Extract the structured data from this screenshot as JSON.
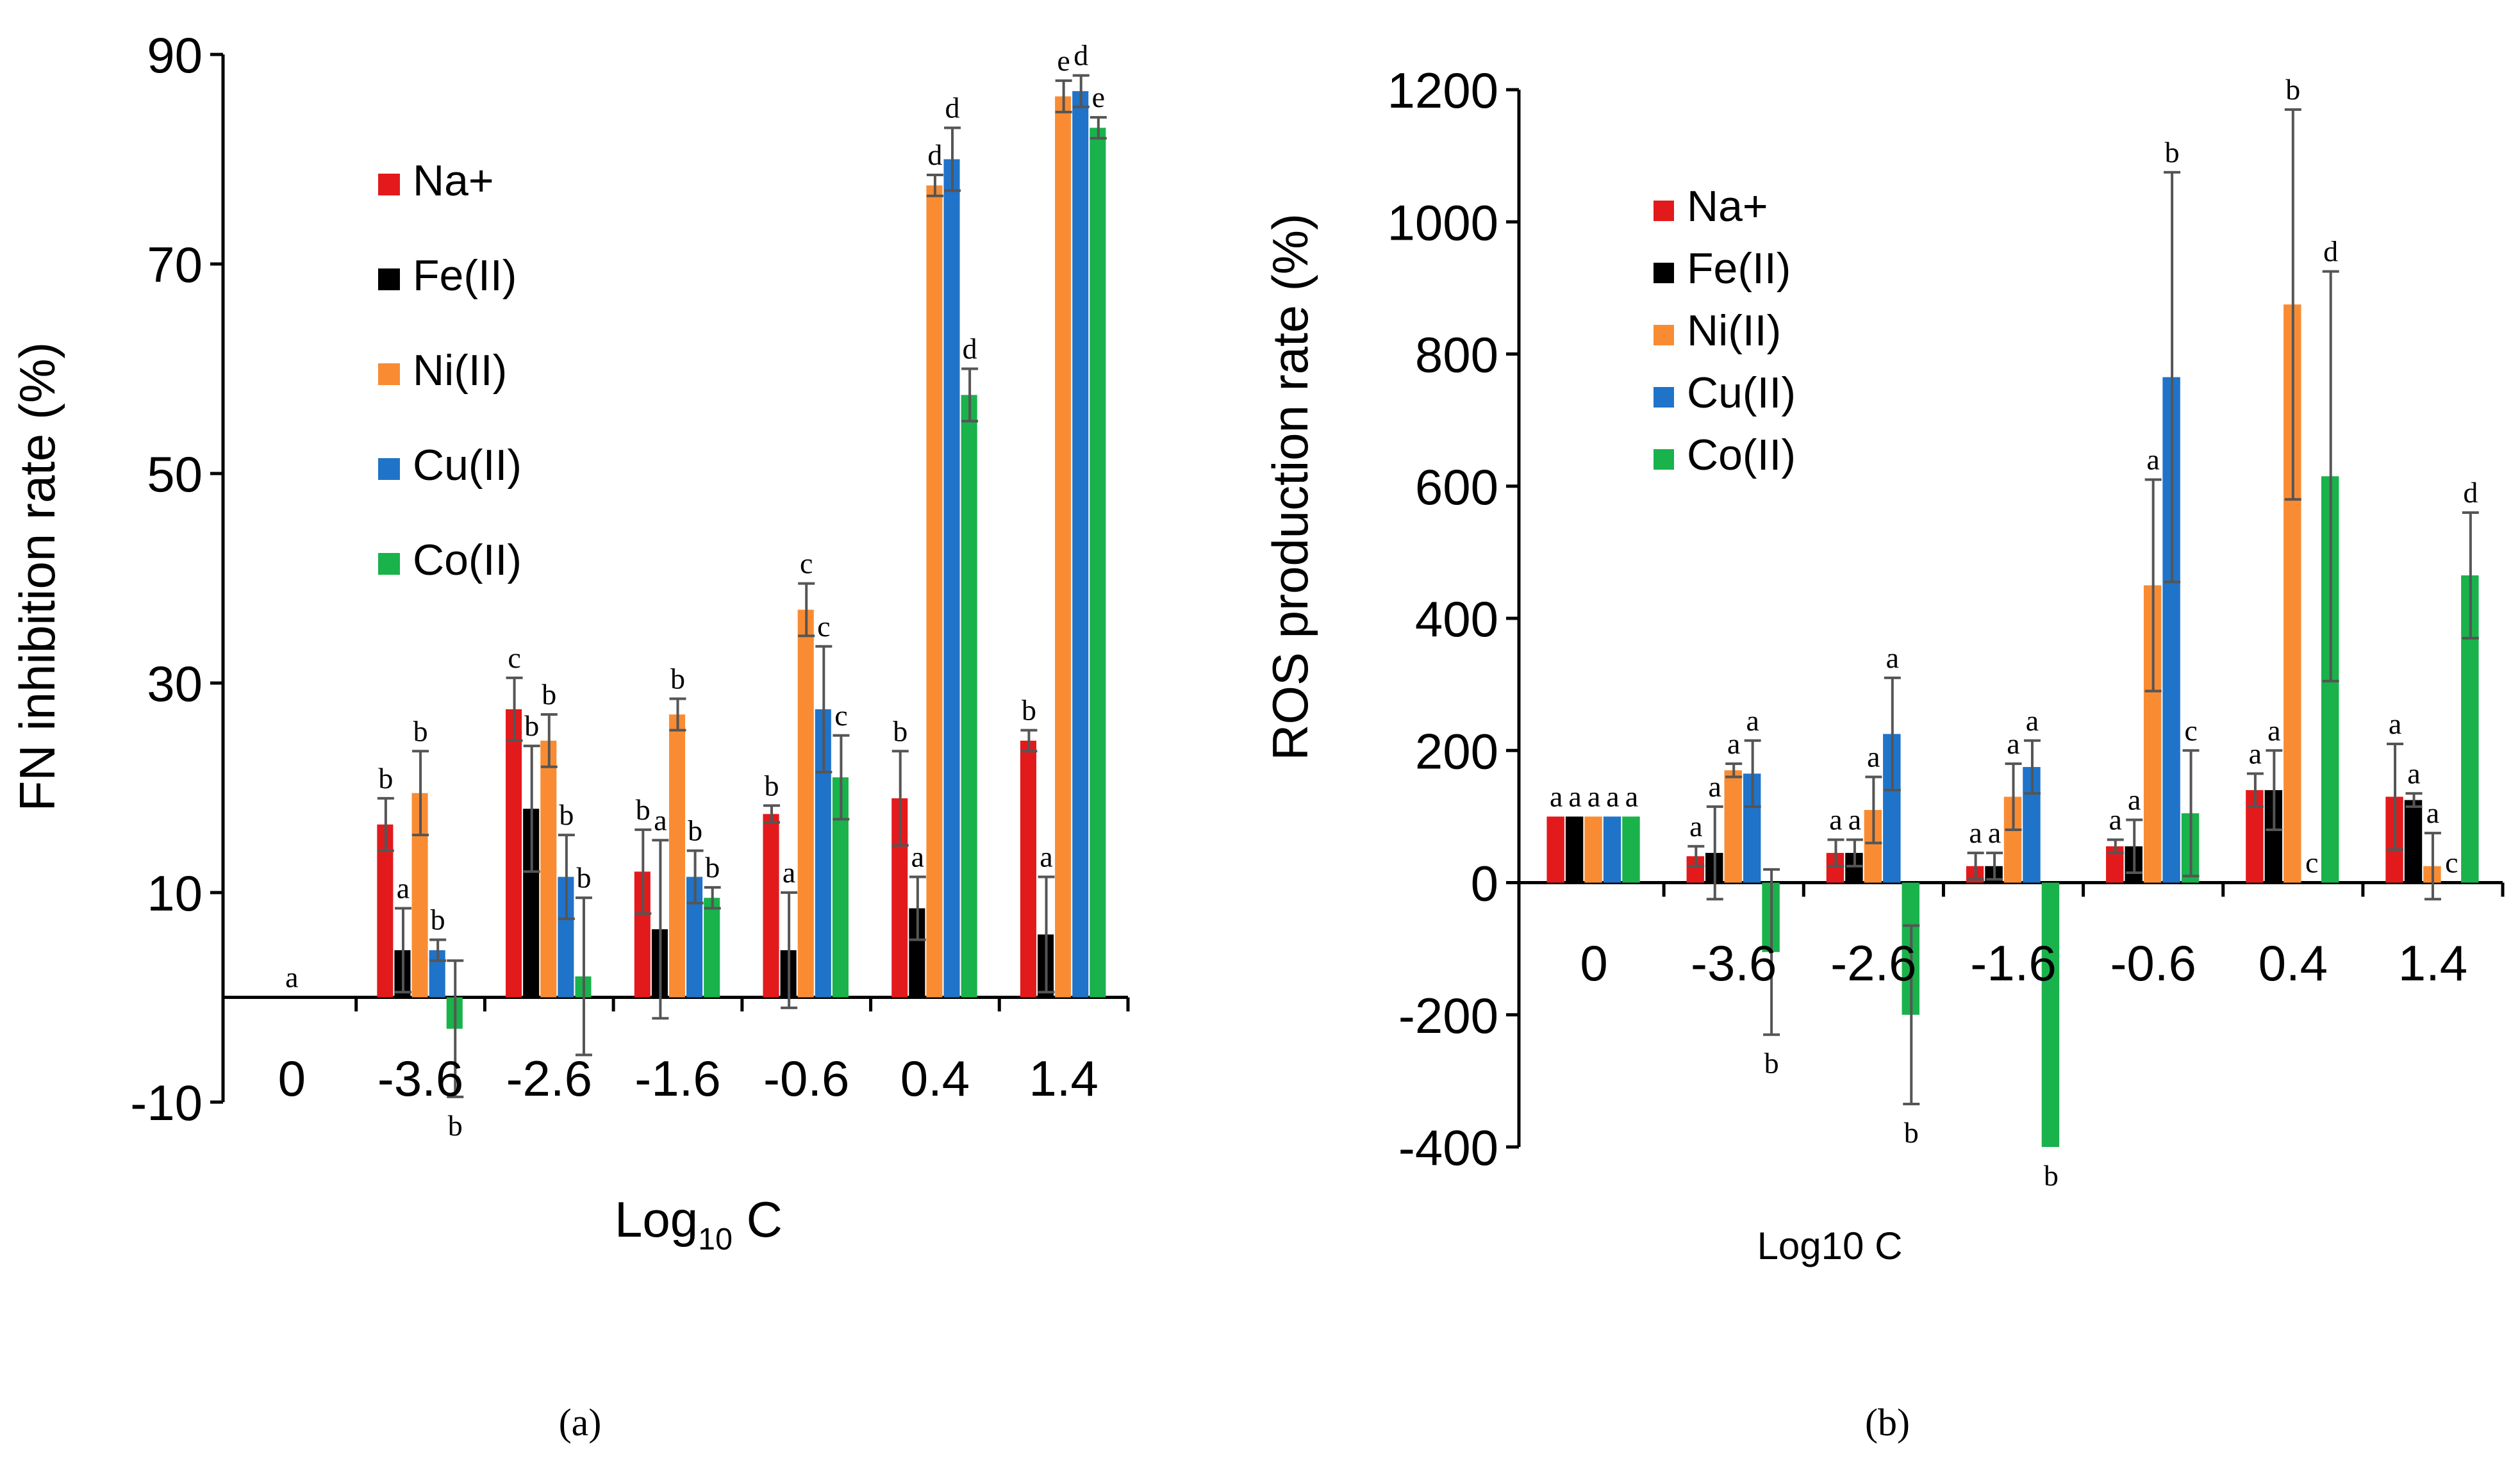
{
  "colors": {
    "Na+": "#e31a1c",
    "Fe(II)": "#000000",
    "Ni(II)": "#f98c33",
    "Cu(II)": "#1f73c9",
    "Co(II)": "#19b24b"
  },
  "captions": {
    "a": "(a)",
    "b": "(b)"
  },
  "chart_data": [
    {
      "type": "bar",
      "panel": "a",
      "ylabel": "FN inhibition rate (%)",
      "xlabel_main": "Log",
      "xlabel_sub": "10",
      "xlabel_tail": " C",
      "ylim": [
        -10,
        90
      ],
      "yticks": [
        -10,
        10,
        30,
        50,
        70,
        90
      ],
      "categories": [
        "0",
        "-3.6",
        "-2.6",
        "-1.6",
        "-0.6",
        "0.4",
        "1.4"
      ],
      "legend_position": "upper-left",
      "grid": false,
      "series": [
        {
          "name": "Na+",
          "values": [
            0,
            16.5,
            27.5,
            12,
            17.5,
            19,
            24.5
          ],
          "errors": [
            0,
            2.5,
            3,
            4,
            0.8,
            4.5,
            1
          ],
          "labels": [
            "",
            "b",
            "c",
            "b",
            "b",
            "b",
            "b"
          ]
        },
        {
          "name": "Fe(II)",
          "values": [
            0,
            4.5,
            18,
            6.5,
            4.5,
            8.5,
            6
          ],
          "errors": [
            0,
            4,
            6,
            8.5,
            5.5,
            3,
            5.5
          ],
          "labels": [
            "",
            "a",
            "b",
            "a",
            "a",
            "a",
            "a"
          ]
        },
        {
          "name": "Ni(II)",
          "values": [
            0,
            19.5,
            24.5,
            27,
            37,
            77.5,
            86
          ],
          "errors": [
            0,
            4,
            2.5,
            1.5,
            2.5,
            1,
            1.5
          ],
          "labels": [
            "a",
            "b",
            "b",
            "b",
            "c",
            "d",
            "e"
          ]
        },
        {
          "name": "Cu(II)",
          "values": [
            0,
            4.5,
            11.5,
            11.5,
            27.5,
            80,
            86.5
          ],
          "errors": [
            0,
            1,
            4,
            2.5,
            6,
            3,
            1.5
          ],
          "labels": [
            "",
            "b",
            "b",
            "b",
            "c",
            "d",
            "d"
          ]
        },
        {
          "name": "Co(II)",
          "values": [
            0,
            -3,
            2,
            9.5,
            21,
            57.5,
            83
          ],
          "errors": [
            0,
            6.5,
            7.5,
            1,
            4,
            2.5,
            1
          ],
          "labels": [
            "",
            "b",
            "b",
            "b",
            "c",
            "d",
            "e"
          ]
        }
      ]
    },
    {
      "type": "bar",
      "panel": "b",
      "ylabel": "ROS production rate (%)",
      "xlabel": "Log10 C",
      "ylim": [
        -400,
        1200
      ],
      "yticks": [
        -400,
        -200,
        0,
        200,
        400,
        600,
        800,
        1000,
        1200
      ],
      "categories": [
        "0",
        "-3.6",
        "-2.6",
        "-1.6",
        "-0.6",
        "0.4",
        "1.4"
      ],
      "legend_position": "upper-left",
      "grid": false,
      "series": [
        {
          "name": "Na+",
          "values": [
            100,
            40,
            45,
            25,
            55,
            140,
            130
          ],
          "errors": [
            0,
            15,
            20,
            20,
            10,
            25,
            80
          ],
          "labels": [
            "a",
            "a",
            "a",
            "a",
            "a",
            "a",
            "a"
          ]
        },
        {
          "name": "Fe(II)",
          "values": [
            100,
            45,
            45,
            25,
            55,
            140,
            125
          ],
          "errors": [
            0,
            70,
            20,
            20,
            40,
            60,
            10
          ],
          "labels": [
            "a",
            "a",
            "a",
            "a",
            "a",
            "a",
            "a"
          ]
        },
        {
          "name": "Ni(II)",
          "values": [
            100,
            170,
            110,
            130,
            450,
            875,
            25
          ],
          "errors": [
            0,
            10,
            50,
            50,
            160,
            295,
            50
          ],
          "labels": [
            "a",
            "a",
            "a",
            "a",
            "a",
            "b",
            "a"
          ]
        },
        {
          "name": "Cu(II)",
          "values": [
            100,
            165,
            225,
            175,
            765,
            0,
            0
          ],
          "errors": [
            0,
            50,
            85,
            40,
            310,
            0,
            0
          ],
          "labels": [
            "a",
            "a",
            "a",
            "a",
            "b",
            "c",
            "c"
          ]
        },
        {
          "name": "Co(II)",
          "values": [
            100,
            -105,
            -200,
            -400,
            105,
            615,
            465
          ],
          "errors": [
            0,
            125,
            135,
            0,
            95,
            310,
            95
          ],
          "labels": [
            "a",
            "b",
            "b",
            "b",
            "c",
            "d",
            "d"
          ]
        }
      ]
    }
  ]
}
